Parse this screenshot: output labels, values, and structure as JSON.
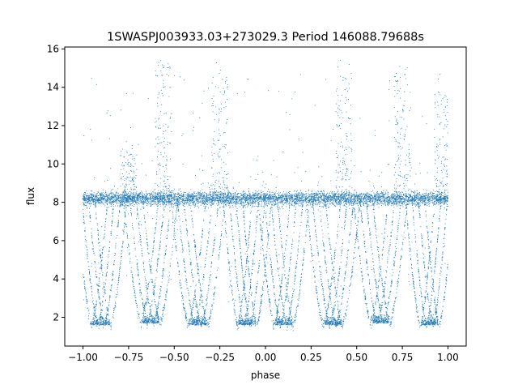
{
  "chart_data": {
    "type": "scatter",
    "title": "1SWASPJ003933.03+273029.3 Period 146088.79688s",
    "xlabel": "phase",
    "ylabel": "flux",
    "xlim": [
      -1.1,
      1.1
    ],
    "ylim": [
      0.5,
      16.1
    ],
    "grid": false,
    "point_color": "#1f77b4",
    "xticks": [
      {
        "value": -1.0,
        "label": "−1.00"
      },
      {
        "value": -0.75,
        "label": "−0.75"
      },
      {
        "value": -0.5,
        "label": "−0.50"
      },
      {
        "value": -0.25,
        "label": "−0.25"
      },
      {
        "value": 0.0,
        "label": "0.00"
      },
      {
        "value": 0.25,
        "label": "0.25"
      },
      {
        "value": 0.5,
        "label": "0.50"
      },
      {
        "value": 0.75,
        "label": "0.75"
      },
      {
        "value": 1.0,
        "label": "1.00"
      }
    ],
    "yticks": [
      {
        "value": 2,
        "label": "2"
      },
      {
        "value": 4,
        "label": "4"
      },
      {
        "value": 6,
        "label": "6"
      },
      {
        "value": 8,
        "label": "8"
      },
      {
        "value": 10,
        "label": "10"
      },
      {
        "value": 12,
        "label": "12"
      },
      {
        "value": 14,
        "label": "14"
      },
      {
        "value": 16,
        "label": "16"
      }
    ],
    "baseline_flux": 8.2,
    "dip_minimum_flux": 1.6,
    "flare_maximum_flux": 15.3,
    "dips": [
      {
        "center": -0.9,
        "min": 1.6,
        "width": 0.055
      },
      {
        "center": -0.63,
        "min": 1.7,
        "width": 0.06
      },
      {
        "center": -0.37,
        "min": 1.6,
        "width": 0.06
      },
      {
        "center": -0.1,
        "min": 1.6,
        "width": 0.05
      },
      {
        "center": 0.1,
        "min": 1.6,
        "width": 0.055
      },
      {
        "center": 0.37,
        "min": 1.6,
        "width": 0.06
      },
      {
        "center": 0.63,
        "min": 1.7,
        "width": 0.06
      },
      {
        "center": 0.9,
        "min": 1.6,
        "width": 0.05
      }
    ],
    "flares": [
      {
        "center": -0.56,
        "max": 15.3
      },
      {
        "center": -0.25,
        "max": 15.0
      },
      {
        "center": 0.43,
        "max": 15.3
      },
      {
        "center": 0.75,
        "max": 15.0
      },
      {
        "center": -0.75,
        "max": 10.8
      },
      {
        "center": 0.97,
        "max": 13.8
      }
    ]
  }
}
